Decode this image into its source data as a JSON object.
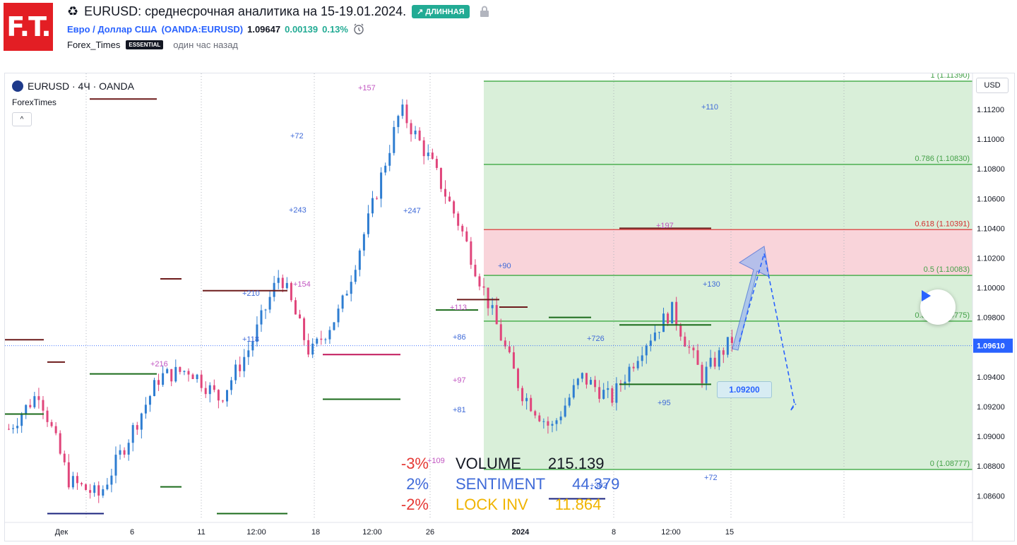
{
  "header": {
    "logo_text": "F.T.",
    "recycle_icon": "recycle-icon",
    "title": "EURUSD: среднесрочная аналитика на 15-19.01.2024.",
    "direction_badge": "↗ ДЛИННАЯ",
    "symbol_name": "Евро / Доллар США",
    "symbol_ticker": "(OANDA:EURUSD)",
    "price": "1.09647",
    "change": "0.00139",
    "change_pct": "0.13%",
    "author": "Forex_Times",
    "author_badge": "ESSENTIAL",
    "time_ago": "один час назад"
  },
  "chart": {
    "legend": "EURUSD · 4Ч · OANDA",
    "indicator": "ForexTimes",
    "collapse_label": "^",
    "currency": "USD",
    "current_price_label": "1.09610",
    "target_label": "1.09200",
    "price_axis": [
      "1.11200",
      "1.11000",
      "1.10800",
      "1.10600",
      "1.10400",
      "1.10200",
      "1.10000",
      "1.09800",
      "1.09600",
      "1.09400",
      "1.09200",
      "1.09000",
      "1.08800",
      "1.08600"
    ],
    "time_axis": [
      "Дек",
      "6",
      "11",
      "12:00",
      "18",
      "12:00",
      "26",
      "2024",
      "8",
      "12:00",
      "15"
    ],
    "fib_levels": [
      {
        "label": "1 (1.11390)",
        "price": 1.1139
      },
      {
        "label": "0.786 (1.10830)",
        "price": 1.1083
      },
      {
        "label": "0.618 (1.10391)",
        "price": 1.10391
      },
      {
        "label": "0.5 (1.10083)",
        "price": 1.10083
      },
      {
        "label": "0.382 (1.09775)",
        "price": 1.09775
      },
      {
        "label": "0 (1.08777)",
        "price": 1.08777
      }
    ],
    "annotations": [
      "+157",
      "+72",
      "+243",
      "+154",
      "+210",
      "+118",
      "+216",
      "+247",
      "+110",
      "+197",
      "+90",
      "+130",
      "+113",
      "+86",
      "+726",
      "+97",
      "+95",
      "+81",
      "+109",
      "+302",
      "+72"
    ],
    "colors": {
      "up": "#2e7dd1",
      "down": "#e0457b",
      "fib_zone": "#d9efd9",
      "red_zone": "#f9d4da",
      "fib_line": "#4caf50",
      "red_line": "#e57373",
      "projection": "#2962ff"
    }
  },
  "stats": {
    "rows": [
      {
        "pct": "-3%",
        "pct_color": "#e53935",
        "label": "VOLUME",
        "value": "215.139",
        "color": "#131722"
      },
      {
        "pct": "2%",
        "pct_color": "#3f6ad8",
        "label": "SENTIMENT",
        "value": "44.379",
        "color": "#3f6ad8"
      },
      {
        "pct": "-2%",
        "pct_color": "#e53935",
        "label": "LOCK INV",
        "value": "11.864",
        "color": "#f0b400"
      }
    ]
  }
}
